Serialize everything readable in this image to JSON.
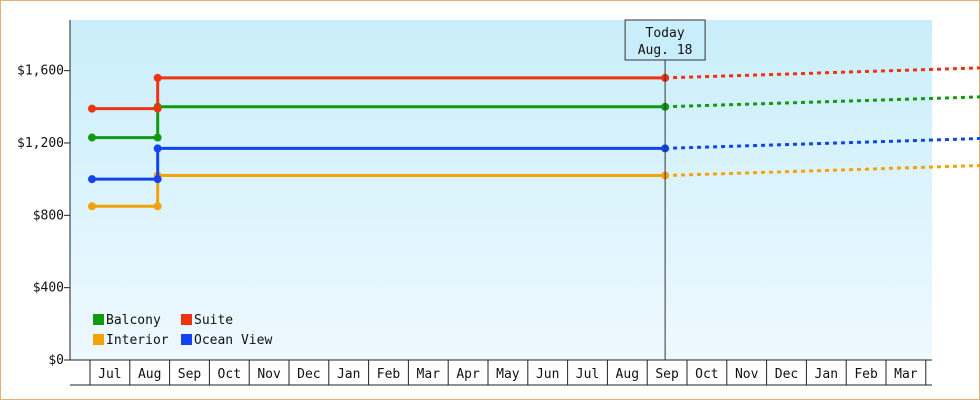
{
  "chart_data": {
    "type": "line",
    "x_labels": [
      "Jul",
      "Aug",
      "Sep",
      "Oct",
      "Nov",
      "Dec",
      "Jan",
      "Feb",
      "Mar",
      "Apr",
      "May",
      "Jun",
      "Jul",
      "Aug",
      "Sep",
      "Oct",
      "Nov",
      "Dec",
      "Jan",
      "Feb",
      "Mar"
    ],
    "ylim": [
      0,
      1880
    ],
    "yticks": [
      0,
      400,
      800,
      1200,
      1600
    ],
    "ytick_labels": [
      "$0",
      "$400",
      "$800",
      "$1,200",
      "$1,600"
    ],
    "grid": false,
    "today_marker": {
      "line1": "Today",
      "line2": "Aug. 18",
      "x": 13.95
    },
    "legend": {
      "placement": "bottom-left"
    },
    "series": [
      {
        "name": "Balcony",
        "color": "#119911",
        "points": [
          [
            -0.45,
            1230
          ],
          [
            1.2,
            1230
          ],
          [
            1.2,
            1400
          ],
          [
            13.95,
            1400
          ]
        ],
        "markers": [
          [
            -0.45,
            1230
          ],
          [
            1.2,
            1230
          ],
          [
            1.2,
            1400
          ],
          [
            13.95,
            1400
          ]
        ],
        "forecast": [
          [
            13.95,
            1400
          ],
          [
            22.55,
            1460
          ]
        ]
      },
      {
        "name": "Suite",
        "color": "#ee3311",
        "points": [
          [
            -0.45,
            1390
          ],
          [
            1.2,
            1390
          ],
          [
            1.2,
            1560
          ],
          [
            13.95,
            1560
          ]
        ],
        "markers": [
          [
            -0.45,
            1390
          ],
          [
            1.2,
            1390
          ],
          [
            1.2,
            1560
          ],
          [
            13.95,
            1560
          ]
        ],
        "forecast": [
          [
            13.95,
            1560
          ],
          [
            22.55,
            1620
          ]
        ]
      },
      {
        "name": "Interior",
        "color": "#f4a20a",
        "points": [
          [
            -0.45,
            850
          ],
          [
            1.2,
            850
          ],
          [
            1.2,
            1020
          ],
          [
            13.95,
            1020
          ]
        ],
        "markers": [
          [
            -0.45,
            850
          ],
          [
            1.2,
            850
          ],
          [
            1.2,
            1020
          ],
          [
            13.95,
            1020
          ]
        ],
        "forecast": [
          [
            13.95,
            1020
          ],
          [
            22.55,
            1080
          ]
        ]
      },
      {
        "name": "Ocean View",
        "color": "#1144ee",
        "points": [
          [
            -0.45,
            1000
          ],
          [
            1.2,
            1000
          ],
          [
            1.2,
            1170
          ],
          [
            13.95,
            1170
          ]
        ],
        "markers": [
          [
            -0.45,
            1000
          ],
          [
            1.2,
            1000
          ],
          [
            1.2,
            1170
          ],
          [
            13.95,
            1170
          ]
        ],
        "forecast": [
          [
            13.95,
            1170
          ],
          [
            22.55,
            1230
          ]
        ]
      }
    ]
  }
}
